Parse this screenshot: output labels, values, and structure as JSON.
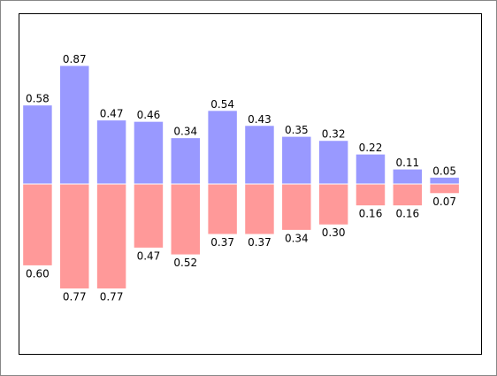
{
  "chart_data": {
    "type": "bar",
    "x": [
      0,
      1,
      2,
      3,
      4,
      5,
      6,
      7,
      8,
      9,
      10,
      11
    ],
    "series": [
      {
        "color": "#9999ff",
        "values": [
          0.58,
          0.87,
          0.47,
          0.46,
          0.34,
          0.54,
          0.43,
          0.35,
          0.32,
          0.22,
          0.11,
          0.05
        ],
        "value_labels": [
          "0.58",
          "0.87",
          "0.47",
          "0.46",
          "0.34",
          "0.54",
          "0.43",
          "0.35",
          "0.32",
          "0.22",
          "0.11",
          "0.05"
        ]
      },
      {
        "color": "#ff9999",
        "values": [
          -0.6,
          -0.77,
          -0.77,
          -0.47,
          -0.52,
          -0.37,
          -0.37,
          -0.34,
          -0.3,
          -0.16,
          -0.16,
          -0.07
        ],
        "value_labels": [
          "0.60",
          "0.77",
          "0.77",
          "0.47",
          "0.52",
          "0.37",
          "0.37",
          "0.34",
          "0.30",
          "0.16",
          "0.16",
          "0.07"
        ]
      }
    ],
    "xlim": [
      -0.5,
      12
    ],
    "ylim": [
      -1.25,
      1.25
    ]
  }
}
